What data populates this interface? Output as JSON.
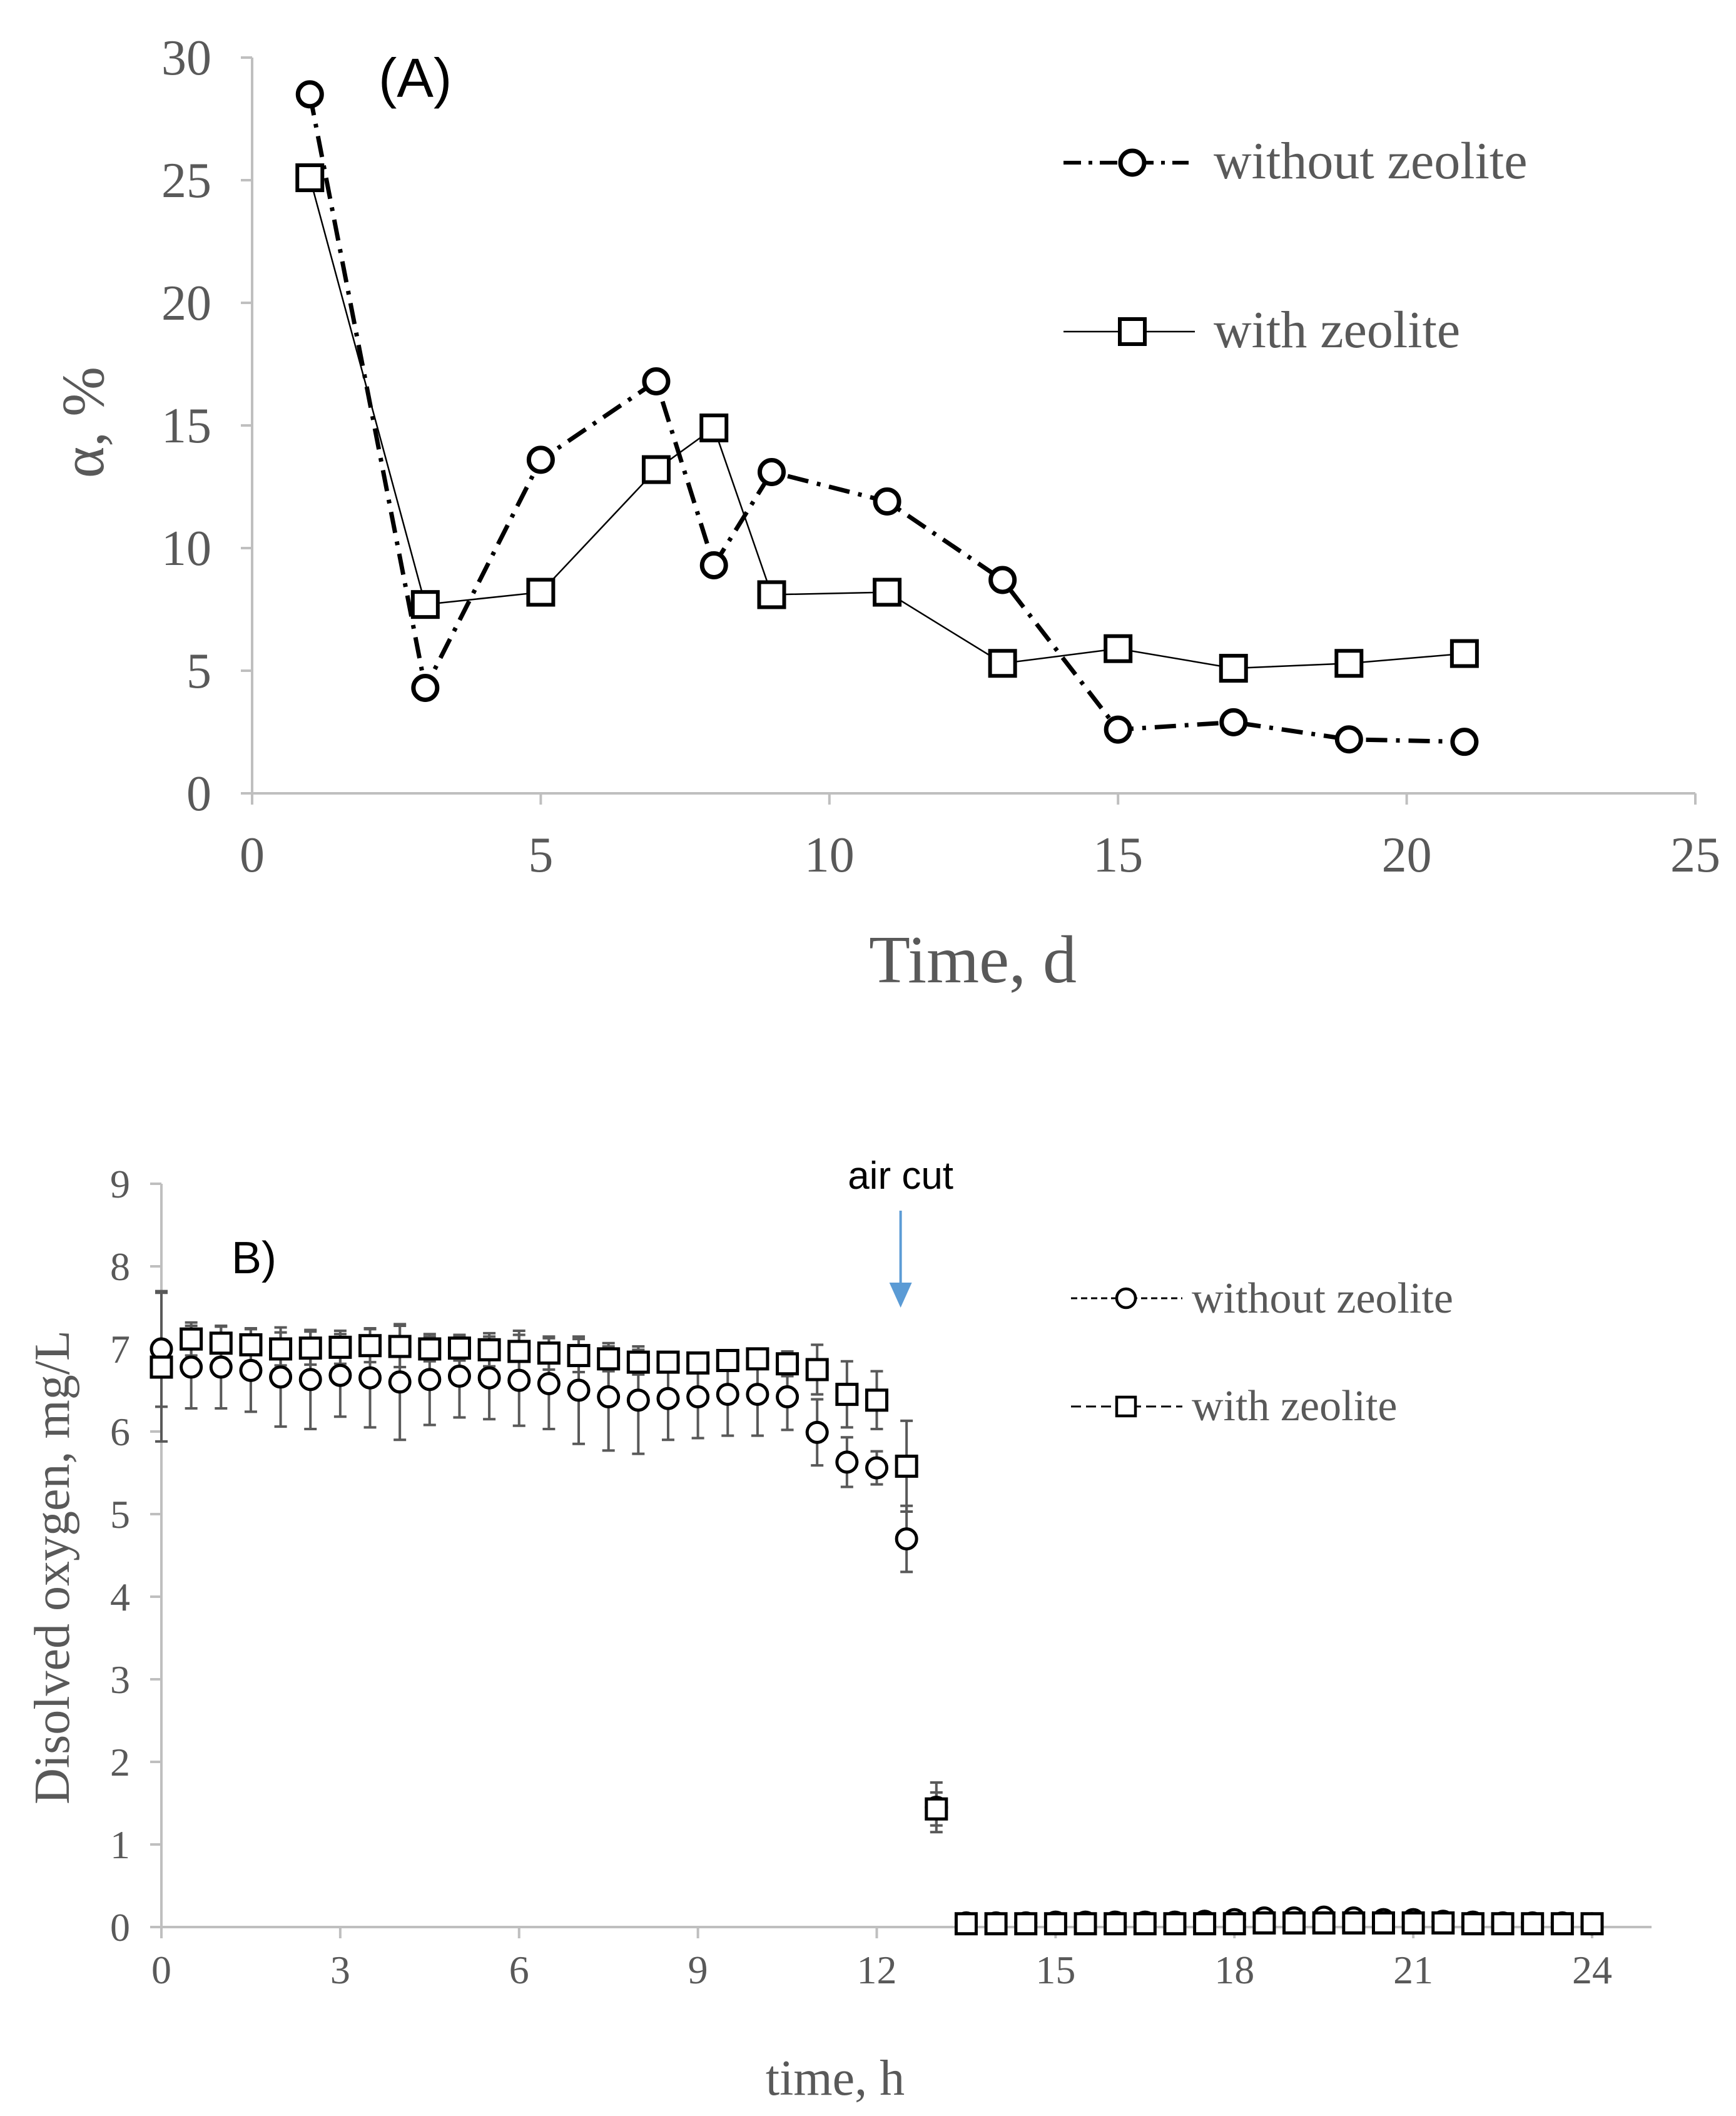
{
  "colors": {
    "axis": "#bfbfbf",
    "text": "#595959",
    "marker": "#000000",
    "error_bar": "#595959",
    "arrow": "#5b9bd5"
  },
  "chart_data": [
    {
      "id": "A",
      "type": "line",
      "panel_label": "(A)",
      "xlabel": "Time, d",
      "ylabel": "α, %",
      "xlim": [
        0,
        25
      ],
      "ylim": [
        0,
        30
      ],
      "xticks": [
        0,
        5,
        10,
        15,
        20,
        25
      ],
      "yticks": [
        0,
        5,
        10,
        15,
        20,
        25,
        30
      ],
      "legend_position": "top-right",
      "series": [
        {
          "name": "without zeolite",
          "marker": "circle",
          "line": "dash-dot",
          "x": [
            1,
            3,
            5,
            7,
            8,
            9,
            11,
            13,
            15,
            17,
            19,
            21
          ],
          "y": [
            28.5,
            4.3,
            13.6,
            16.8,
            9.3,
            13.1,
            11.9,
            8.7,
            2.6,
            2.9,
            2.2,
            2.1
          ]
        },
        {
          "name": "with zeolite",
          "marker": "square",
          "line": "solid",
          "x": [
            1,
            3,
            5,
            7,
            8,
            9,
            11,
            13,
            15,
            17,
            19,
            21
          ],
          "y": [
            25.1,
            7.7,
            8.2,
            13.2,
            14.9,
            8.1,
            8.2,
            5.3,
            5.9,
            5.1,
            5.3,
            5.7
          ]
        }
      ]
    },
    {
      "id": "B",
      "type": "scatter",
      "panel_label": "B)",
      "xlabel": "time, h",
      "ylabel": "Disolved oxygen, mg/L",
      "xlim": [
        0,
        25
      ],
      "ylim": [
        0,
        9
      ],
      "xticks": [
        0,
        3,
        6,
        9,
        12,
        15,
        18,
        21,
        24
      ],
      "yticks": [
        0,
        1,
        2,
        3,
        4,
        5,
        6,
        7,
        8,
        9
      ],
      "legend_position": "top-right",
      "annotation": {
        "text": "air cut",
        "x": 12.4,
        "y_from": 8.6,
        "y_to": 7.5
      },
      "series": [
        {
          "name": "without zeolite",
          "marker": "circle",
          "x": [
            0,
            0.5,
            1,
            1.5,
            2,
            2.5,
            3,
            3.5,
            4,
            4.5,
            5,
            5.5,
            6,
            6.5,
            7,
            7.5,
            8,
            8.5,
            9,
            9.5,
            10,
            10.5,
            11,
            11.5,
            12,
            12.5,
            13,
            13.5,
            14,
            14.5,
            15,
            15.5,
            16,
            16.5,
            17,
            17.5,
            18,
            18.5,
            19,
            19.5,
            20,
            20.5,
            21,
            21.5,
            22,
            22.5,
            23,
            23.5,
            24
          ],
          "y": [
            7.0,
            6.78,
            6.78,
            6.74,
            6.66,
            6.63,
            6.68,
            6.65,
            6.6,
            6.63,
            6.67,
            6.65,
            6.62,
            6.58,
            6.5,
            6.42,
            6.38,
            6.4,
            6.42,
            6.45,
            6.45,
            6.42,
            5.99,
            5.63,
            5.56,
            4.7,
            1.45,
            0.05,
            0.05,
            0.05,
            0.06,
            0.06,
            0.06,
            0.06,
            0.06,
            0.07,
            0.09,
            0.11,
            0.11,
            0.12,
            0.11,
            0.09,
            0.09,
            0.07,
            0.06,
            0.05,
            0.05,
            0.05,
            0.04
          ],
          "err": [
            0.7,
            0.5,
            0.5,
            0.5,
            0.6,
            0.6,
            0.5,
            0.6,
            0.7,
            0.55,
            0.5,
            0.5,
            0.55,
            0.55,
            0.65,
            0.65,
            0.65,
            0.5,
            0.5,
            0.5,
            0.5,
            0.4,
            0.4,
            0.3,
            0.2,
            0.4,
            0.3,
            0.02,
            0.02,
            0.02,
            0.02,
            0.02,
            0.02,
            0.02,
            0.02,
            0.02,
            0.03,
            0.05,
            0.04,
            0.05,
            0.04,
            0.03,
            0.03,
            0.02,
            0.02,
            0.02,
            0.02,
            0.02,
            0.02
          ]
        },
        {
          "name": "with zeolite",
          "marker": "square",
          "x": [
            0,
            0.5,
            1,
            1.5,
            2,
            2.5,
            3,
            3.5,
            4,
            4.5,
            5,
            5.5,
            6,
            6.5,
            7,
            7.5,
            8,
            8.5,
            9,
            9.5,
            10,
            10.5,
            11,
            11.5,
            12,
            12.5,
            13,
            13.5,
            14,
            14.5,
            15,
            15.5,
            16,
            16.5,
            17,
            17.5,
            18,
            18.5,
            19,
            19.5,
            20,
            20.5,
            21,
            21.5,
            22,
            22.5,
            23,
            23.5,
            24
          ],
          "y": [
            6.78,
            7.12,
            7.07,
            7.05,
            7.0,
            7.01,
            7.02,
            7.04,
            7.03,
            7.0,
            7.01,
            6.99,
            6.97,
            6.95,
            6.92,
            6.88,
            6.84,
            6.84,
            6.83,
            6.86,
            6.88,
            6.82,
            6.75,
            6.45,
            6.38,
            5.58,
            1.43,
            0.04,
            0.04,
            0.04,
            0.04,
            0.04,
            0.04,
            0.04,
            0.04,
            0.04,
            0.04,
            0.05,
            0.05,
            0.05,
            0.05,
            0.05,
            0.05,
            0.05,
            0.04,
            0.04,
            0.04,
            0.04,
            0.04
          ],
          "err": [
            0.9,
            0.2,
            0.2,
            0.2,
            0.2,
            0.2,
            0.2,
            0.2,
            0.25,
            0.15,
            0.15,
            0.2,
            0.25,
            0.2,
            0.2,
            0.15,
            0.15,
            0.1,
            0.1,
            0.1,
            0.1,
            0.15,
            0.3,
            0.4,
            0.35,
            0.55,
            0.2,
            0.02,
            0.02,
            0.02,
            0.02,
            0.02,
            0.02,
            0.02,
            0.02,
            0.02,
            0.02,
            0.02,
            0.02,
            0.02,
            0.02,
            0.02,
            0.02,
            0.02,
            0.02,
            0.02,
            0.02,
            0.02,
            0.02
          ]
        }
      ]
    }
  ]
}
